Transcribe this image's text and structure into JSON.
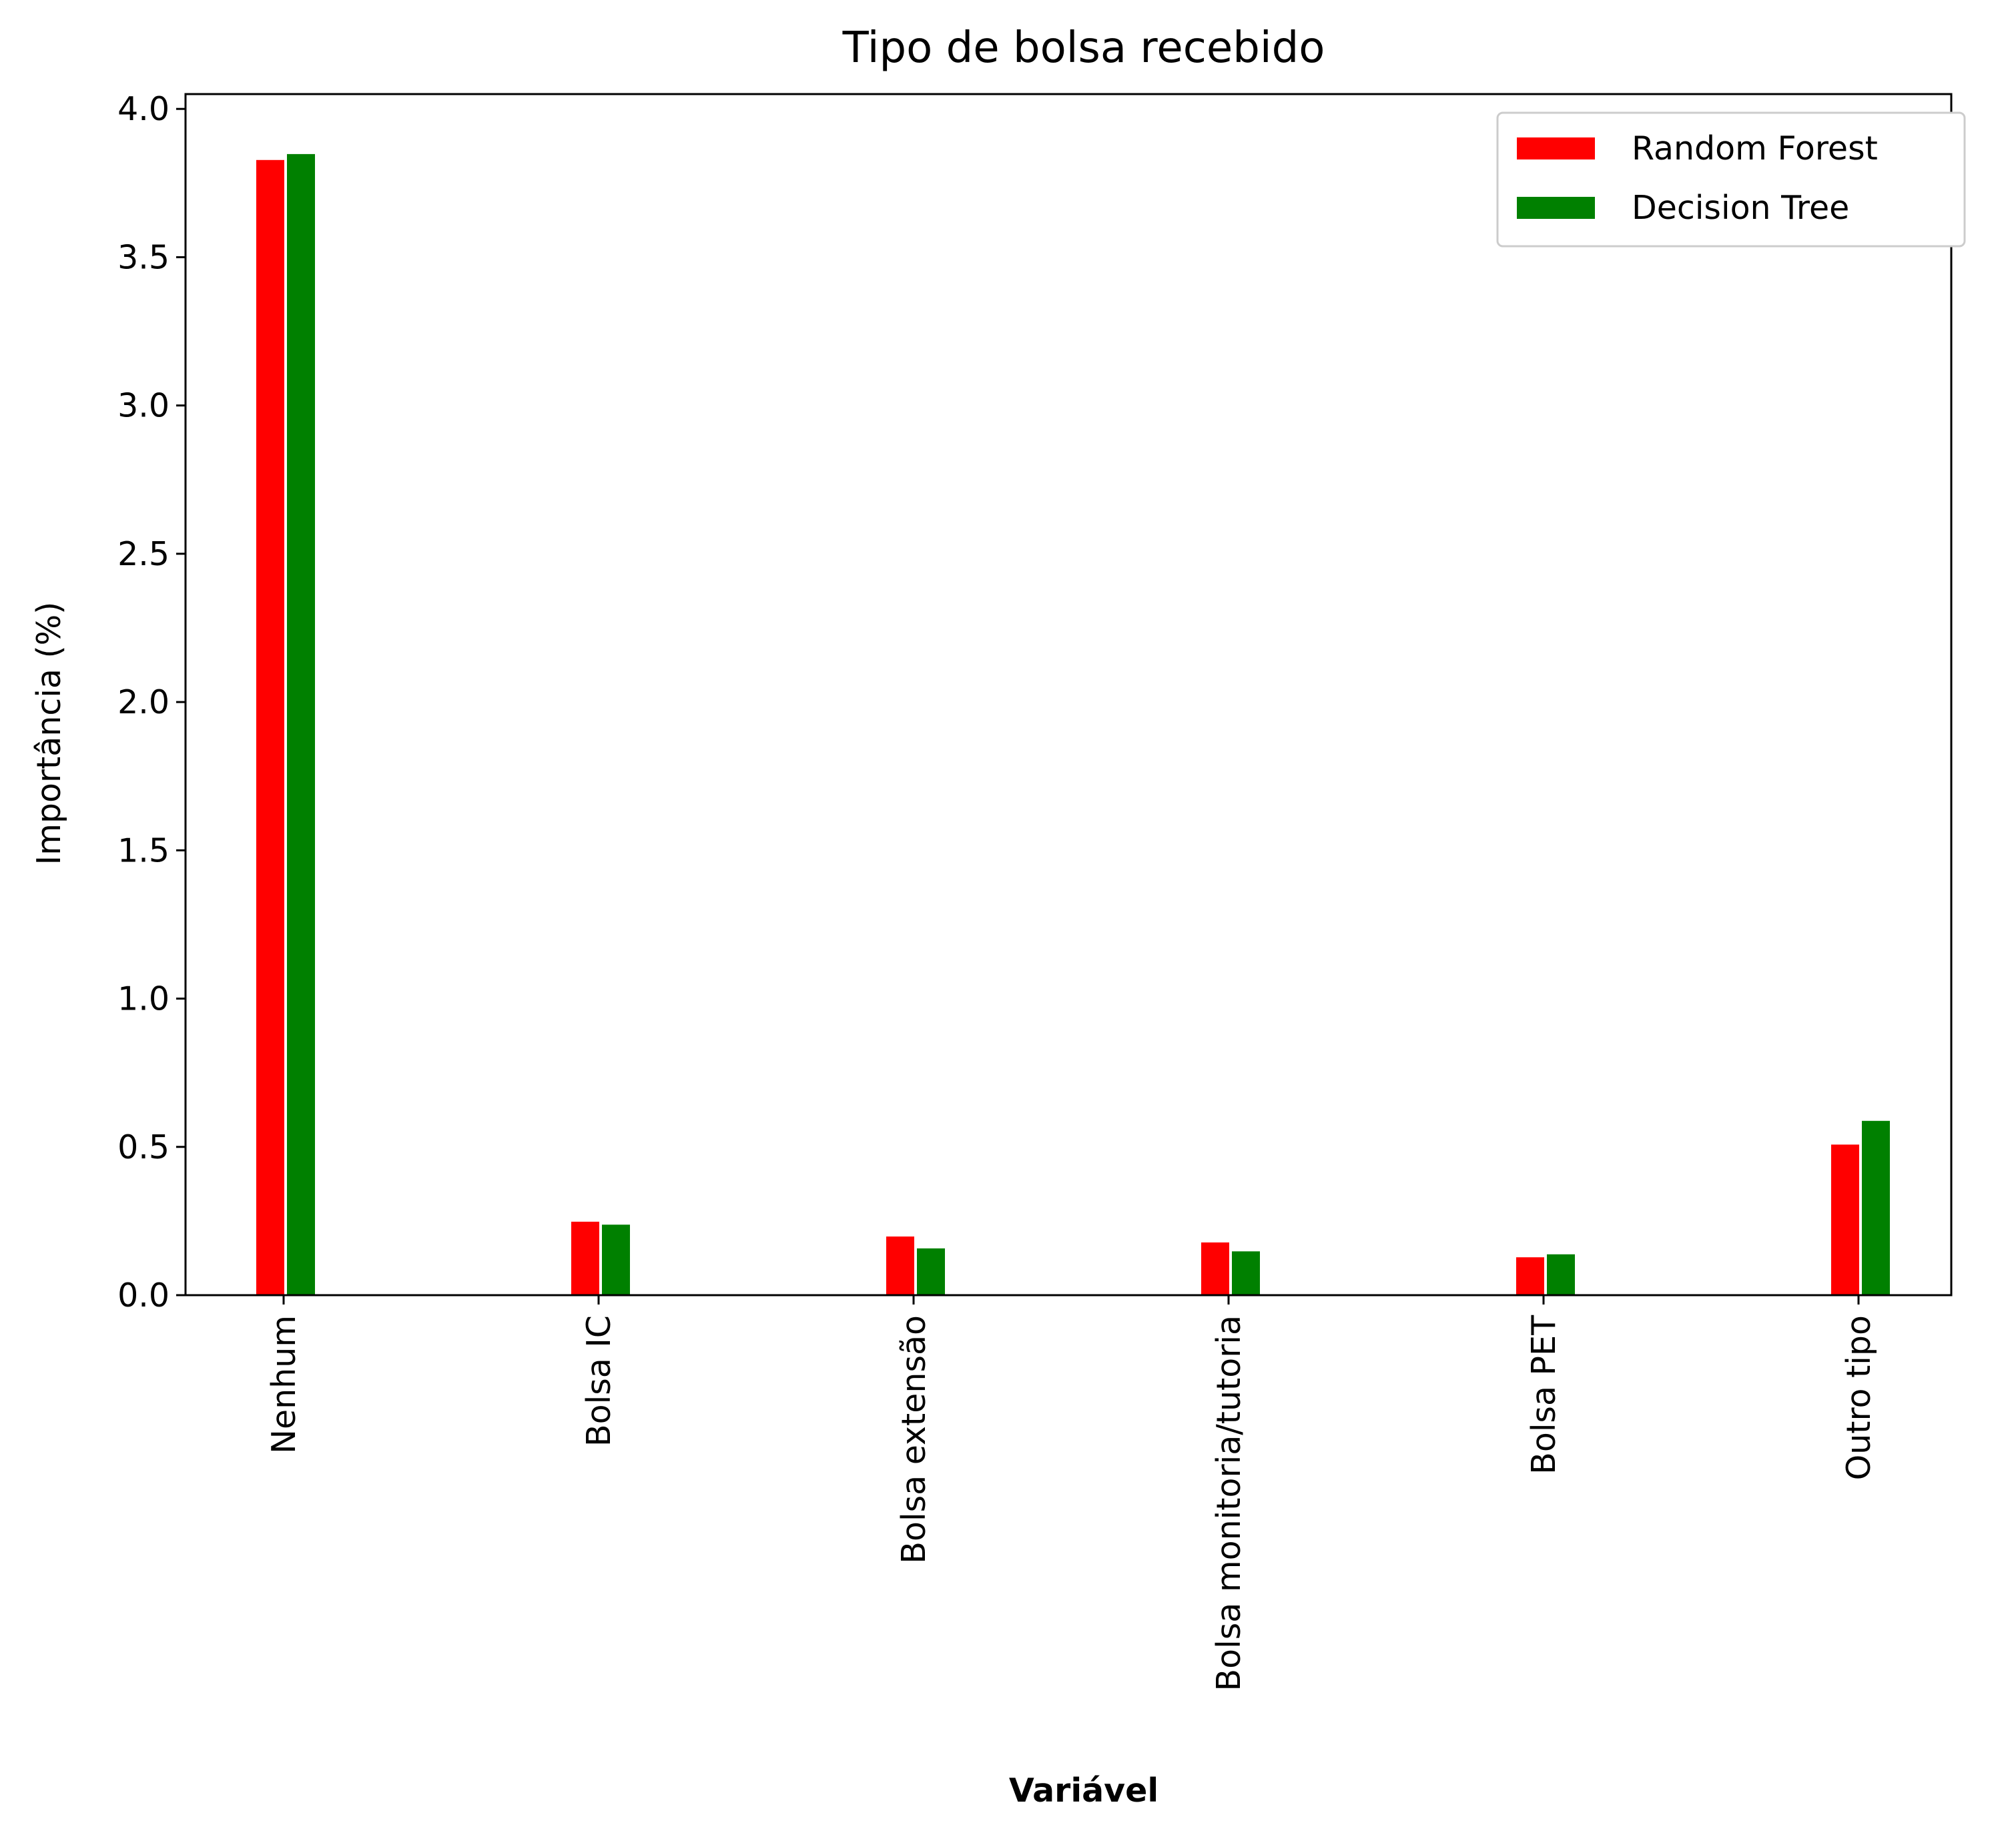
{
  "chart_data": {
    "type": "bar",
    "title": "Tipo de bolsa recebido",
    "xlabel": "Variável",
    "ylabel": "Importância (%)",
    "categories": [
      "Nenhum",
      "Bolsa IC",
      "Bolsa extensão",
      "Bolsa monitoria/tutoria",
      "Bolsa PET",
      "Outro tipo"
    ],
    "series": [
      {
        "name": "Random Forest",
        "color": "#ff0000",
        "values": [
          3.83,
          0.25,
          0.2,
          0.18,
          0.13,
          0.51
        ]
      },
      {
        "name": "Decision Tree",
        "color": "#008000",
        "values": [
          3.85,
          0.24,
          0.16,
          0.15,
          0.14,
          0.59
        ]
      }
    ],
    "ylim": [
      0,
      4.05
    ],
    "yticks": [
      0.0,
      0.5,
      1.0,
      1.5,
      2.0,
      2.5,
      3.0,
      3.5,
      4.0
    ],
    "ytick_labels": [
      "0.0",
      "0.5",
      "1.0",
      "1.5",
      "2.0",
      "2.5",
      "3.0",
      "3.5",
      "4.0"
    ],
    "grid": false,
    "legend_position": "top-right",
    "xtick_rotation": "vertical"
  }
}
